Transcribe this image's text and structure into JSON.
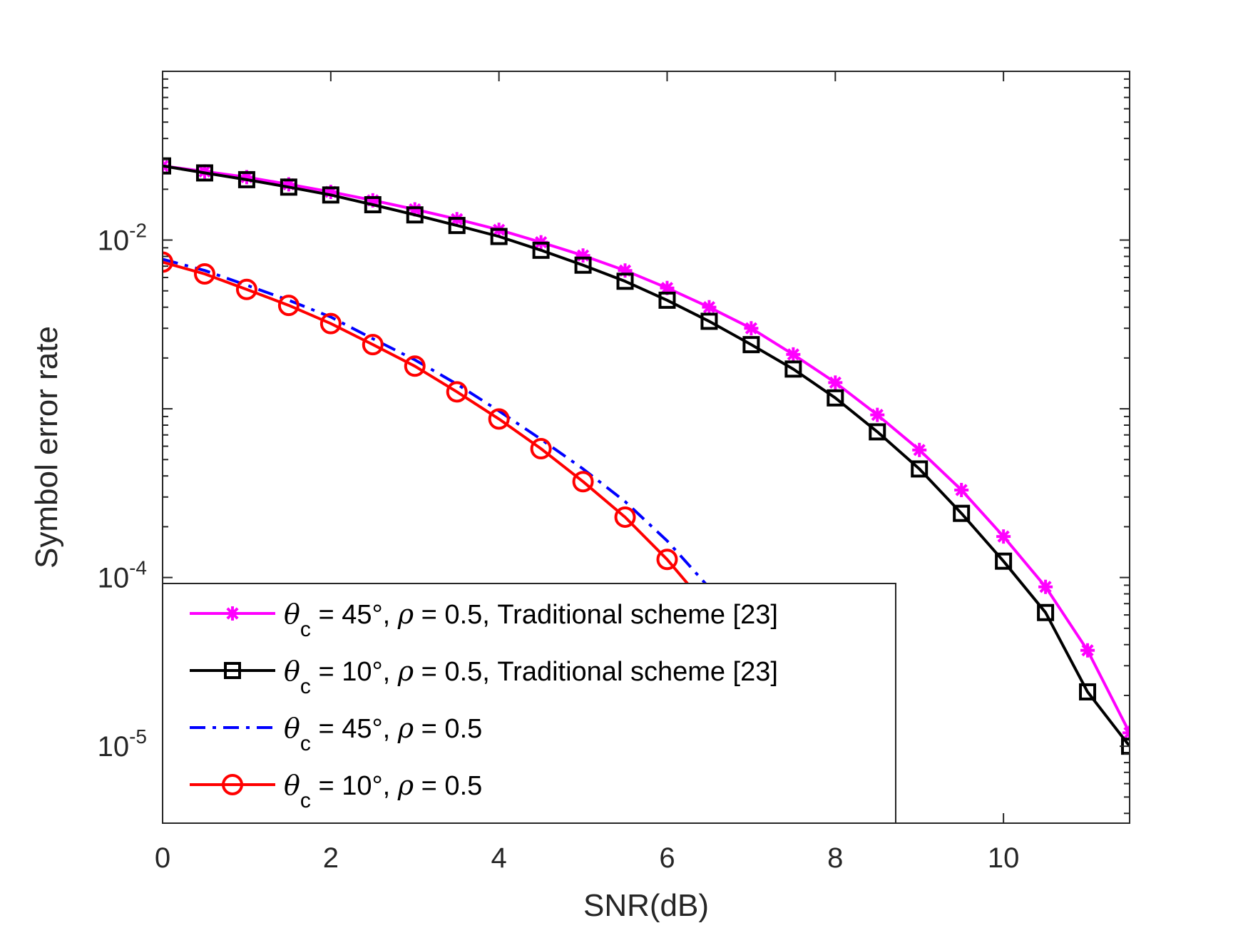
{
  "chart_data": {
    "type": "line",
    "title": "",
    "xlabel": "SNR(dB)",
    "ylabel": "Symbol error rate",
    "x_scale": "linear",
    "y_scale": "log",
    "xlim": [
      0,
      11.5
    ],
    "ylim": [
      3.5e-06,
      0.1
    ],
    "x_ticks": [
      {
        "value": 0,
        "label": "0"
      },
      {
        "value": 2,
        "label": "2"
      },
      {
        "value": 4,
        "label": "4"
      },
      {
        "value": 6,
        "label": "6"
      },
      {
        "value": 8,
        "label": "8"
      },
      {
        "value": 10,
        "label": "10"
      }
    ],
    "y_ticks": [
      {
        "value": 0.01,
        "base": "10",
        "exp": "-2"
      },
      {
        "value": 0.0001,
        "base": "10",
        "exp": "-4"
      },
      {
        "value": 1e-05,
        "base": "10",
        "exp": "-5"
      }
    ],
    "grid": false,
    "legend_position": "bottom-left",
    "series": [
      {
        "theta": "θ",
        "sub": "c",
        "rest": " = 45°, ",
        "rho": "ρ",
        "tail": " = 0.5, Traditional scheme [23]",
        "color": "#ff00ff",
        "marker": "asterisk",
        "dash": "solid",
        "x": [
          0,
          0.5,
          1,
          1.5,
          2,
          2.5,
          3,
          3.5,
          4,
          4.5,
          5,
          5.5,
          6,
          6.5,
          7,
          7.5,
          8,
          8.5,
          9,
          9.5,
          10,
          10.5,
          11,
          11.5
        ],
        "y": [
          0.0275,
          0.0255,
          0.0236,
          0.0214,
          0.0193,
          0.0172,
          0.0152,
          0.0133,
          0.0115,
          0.0097,
          0.0081,
          0.0066,
          0.0052,
          0.004,
          0.003,
          0.0021,
          0.00143,
          0.00092,
          0.00057,
          0.00033,
          0.000175,
          8.8e-05,
          3.7e-05,
          1.2e-05
        ]
      },
      {
        "theta": "θ",
        "sub": "c",
        "rest": " = 10°, ",
        "rho": "ρ",
        "tail": " = 0.5, Traditional scheme [23]",
        "color": "#000000",
        "marker": "square",
        "dash": "solid",
        "x": [
          0,
          0.5,
          1,
          1.5,
          2,
          2.5,
          3,
          3.5,
          4,
          4.5,
          5,
          5.5,
          6,
          6.5,
          7,
          7.5,
          8,
          8.5,
          9,
          9.5,
          10,
          10.5,
          11,
          11.5
        ],
        "y": [
          0.0275,
          0.025,
          0.0228,
          0.0206,
          0.0185,
          0.0162,
          0.0141,
          0.0122,
          0.0105,
          0.0087,
          0.0071,
          0.0057,
          0.0044,
          0.0033,
          0.0024,
          0.00172,
          0.00116,
          0.00073,
          0.00044,
          0.00024,
          0.000125,
          6.2e-05,
          2.1e-05,
          1e-05
        ]
      },
      {
        "theta": "θ",
        "sub": "c",
        "rest": " = 45°, ",
        "rho": "ρ",
        "tail": " = 0.5",
        "color": "#0000ff",
        "marker": "none",
        "dash": "dashdot",
        "x": [
          0,
          0.5,
          1,
          1.5,
          2,
          2.5,
          3,
          3.5,
          4,
          4.5,
          5,
          5.5,
          6,
          6.5,
          6.75
        ],
        "y": [
          0.0077,
          0.0066,
          0.0054,
          0.0044,
          0.0035,
          0.0026,
          0.00195,
          0.0014,
          0.00097,
          0.00066,
          0.00044,
          0.000282,
          0.000165,
          8.7e-05,
          5.95e-05
        ]
      },
      {
        "theta": "θ",
        "sub": "c",
        "rest": " = 10°, ",
        "rho": "ρ",
        "tail": " = 0.5",
        "color": "#ff0000",
        "marker": "circle",
        "dash": "solid",
        "x": [
          0,
          0.5,
          1,
          1.5,
          2,
          2.5,
          3,
          3.5,
          4,
          4.5,
          5,
          5.5,
          6,
          6.5
        ],
        "y": [
          0.0074,
          0.0063,
          0.0051,
          0.0041,
          0.0032,
          0.0024,
          0.00179,
          0.00126,
          0.00087,
          0.00058,
          0.00037,
          0.000228,
          0.000128,
          6.5e-05
        ]
      }
    ]
  }
}
